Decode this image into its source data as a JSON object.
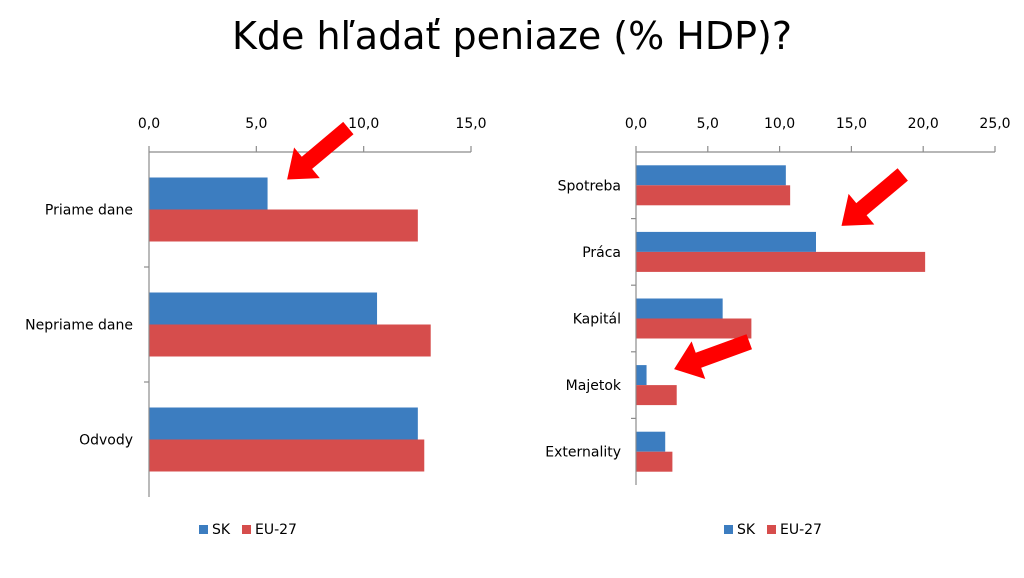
{
  "slide": {
    "title": "Kde hľadať peniaze (% HDP)?"
  },
  "colors": {
    "sk": "#3C7DC0",
    "eu": "#D64D4C",
    "arrow": "#FF0000",
    "axis": "#8C8C8C"
  },
  "chart_data": [
    {
      "type": "bar",
      "orientation": "horizontal",
      "categories": [
        "Priame dane",
        "Nepriame dane",
        "Odvody"
      ],
      "series": [
        {
          "name": "SK",
          "values": [
            5.5,
            10.6,
            12.5
          ]
        },
        {
          "name": "EU-27",
          "values": [
            12.5,
            13.1,
            12.8
          ]
        }
      ],
      "xlim": [
        0,
        15
      ],
      "ticks": [
        "0,0",
        "5,0",
        "10,0",
        "15,0"
      ],
      "tick_values": [
        0,
        5,
        10,
        15
      ],
      "axis_position": "top",
      "legend": [
        "SK",
        "EU-27"
      ],
      "legend_position": "bottom",
      "grid": false
    },
    {
      "type": "bar",
      "orientation": "horizontal",
      "categories": [
        "Spotreba",
        "Práca",
        "Kapitál",
        "Majetok",
        "Externality"
      ],
      "series": [
        {
          "name": "SK",
          "values": [
            10.4,
            12.5,
            6.0,
            0.7,
            2.0
          ]
        },
        {
          "name": "EU-27",
          "values": [
            10.7,
            20.1,
            8.0,
            2.8,
            2.5
          ]
        }
      ],
      "xlim": [
        0,
        25
      ],
      "ticks": [
        "0,0",
        "5,0",
        "10,0",
        "15,0",
        "20,0",
        "25,0"
      ],
      "tick_values": [
        0,
        5,
        10,
        15,
        20,
        25
      ],
      "axis_position": "top",
      "legend": [
        "SK",
        "EU-27"
      ],
      "legend_position": "bottom",
      "grid": false
    }
  ],
  "annotations": [
    {
      "chart": 0,
      "category": "Priame dane",
      "icon": "red-arrow-icon"
    },
    {
      "chart": 1,
      "category": "Práca",
      "icon": "red-arrow-icon"
    },
    {
      "chart": 1,
      "category": "Majetok",
      "icon": "red-arrow-icon"
    }
  ]
}
